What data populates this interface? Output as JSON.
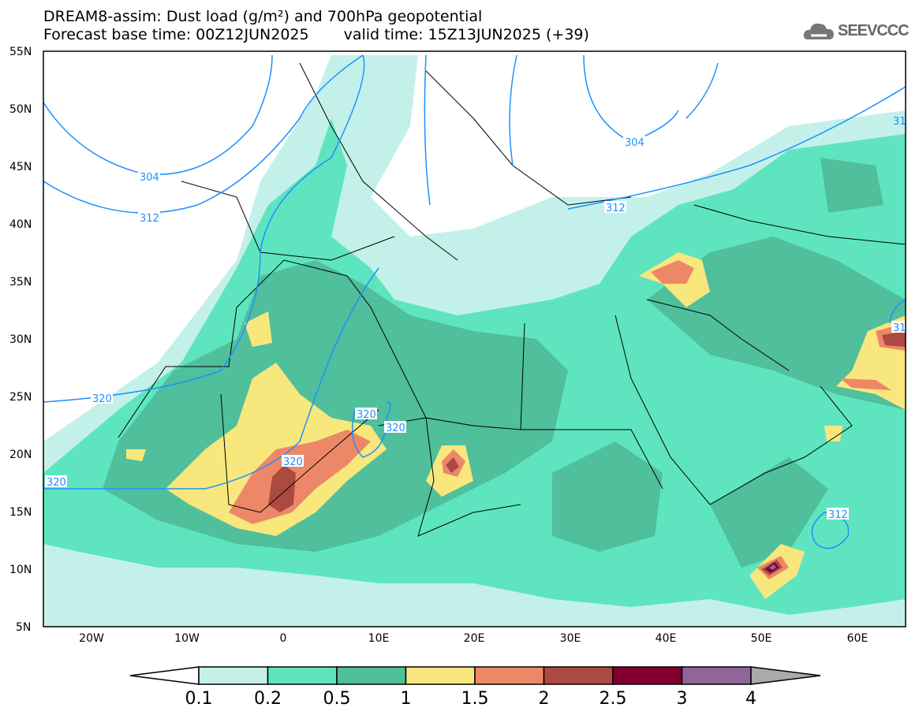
{
  "title": {
    "line1": "DREAM8-assim: Dust load (g/m²) and 700hPa geopotential",
    "base_time": "Forecast base time: 00Z12JUN2025",
    "valid_time": "valid time: 15Z13JUN2025 (+39)"
  },
  "logo": {
    "text": "SEEVCCC",
    "icon": "cloud-icon"
  },
  "axes": {
    "lat_labels": [
      "55N",
      "50N",
      "45N",
      "40N",
      "35N",
      "30N",
      "25N",
      "20N",
      "15N",
      "10N",
      "5N"
    ],
    "lon_labels": [
      "20W",
      "10W",
      "0",
      "10E",
      "20E",
      "30E",
      "40E",
      "50E",
      "60E"
    ]
  },
  "contour_labels": {
    "c304a": "304",
    "c312a": "312",
    "c304b": "304",
    "c312b": "312",
    "c31r": "31",
    "c320a": "320",
    "c320b": "320",
    "c320c": "320",
    "c320d": "320",
    "c320e": "320",
    "c312c": "312",
    "c31e": "31"
  },
  "colorbar": {
    "labels": [
      "0.1",
      "0.2",
      "0.5",
      "1",
      "1.5",
      "2",
      "2.5",
      "3",
      "4"
    ],
    "colors": [
      "#c3f1ea",
      "#5ee5bf",
      "#50bf9b",
      "#f8e77c",
      "#ec8868",
      "#ad4a40",
      "#820030",
      "#8f6699",
      "#aaaaaa"
    ]
  },
  "colors": {
    "contour": "#1e90ff",
    "border": "#000000"
  }
}
